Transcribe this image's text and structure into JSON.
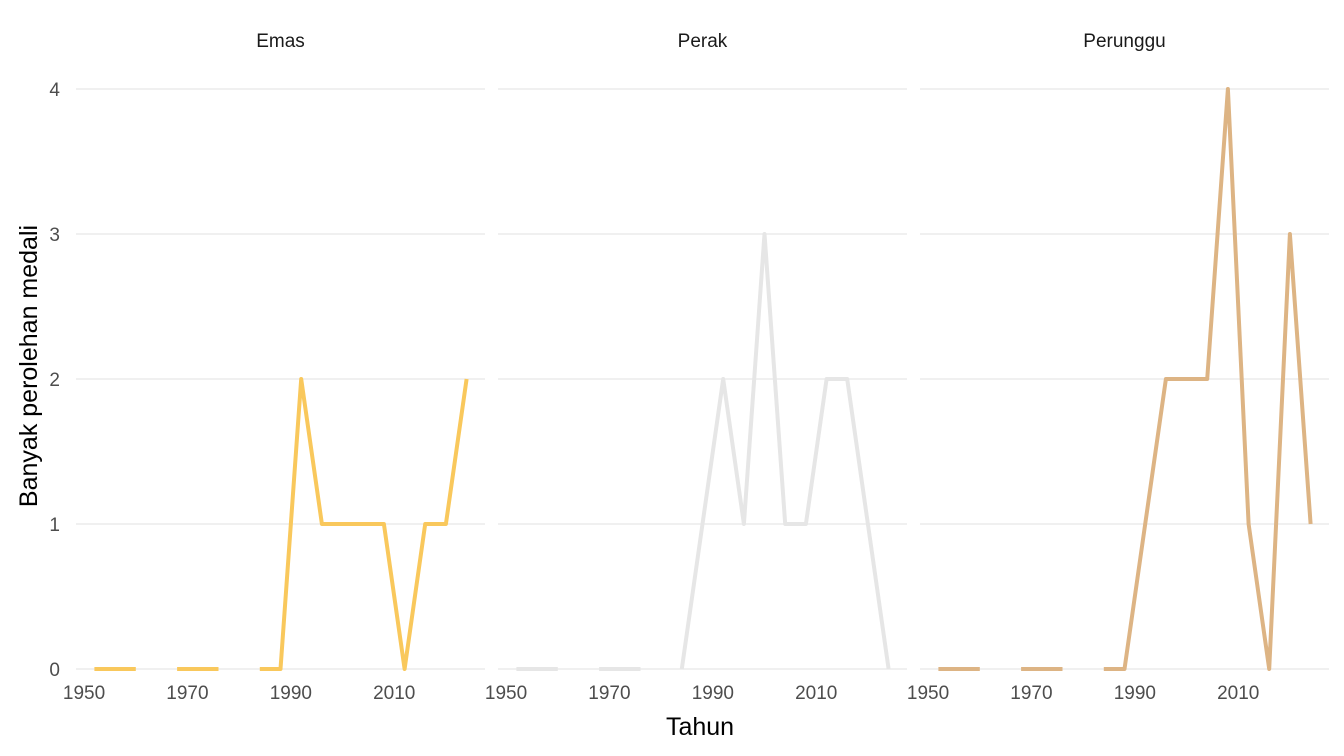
{
  "chart_data": {
    "type": "line",
    "facets": [
      "Emas",
      "Perak",
      "Perunggu"
    ],
    "xlabel": "Tahun",
    "ylabel": "Banyak perolehan medali",
    "xlim": [
      1952,
      2024
    ],
    "ylim": [
      0,
      4
    ],
    "x_ticks": [
      1950,
      1970,
      1990,
      2010
    ],
    "y_ticks": [
      0,
      1,
      2,
      3,
      4
    ],
    "grid": true,
    "legend": "none",
    "x": [
      1952,
      1956,
      1960,
      1964,
      1968,
      1972,
      1976,
      1980,
      1984,
      1988,
      1992,
      1996,
      2000,
      2004,
      2008,
      2012,
      2016,
      2020,
      2024
    ],
    "series": [
      {
        "facet": "Emas",
        "color": "#F9C85C",
        "values": [
          0,
          0,
          0,
          null,
          0,
          0,
          0,
          null,
          0,
          0,
          2,
          1,
          1,
          1,
          1,
          0,
          1,
          1,
          2
        ]
      },
      {
        "facet": "Perak",
        "color": "#E6E6E6",
        "values": [
          0,
          0,
          0,
          null,
          0,
          0,
          0,
          null,
          0,
          1,
          2,
          1,
          3,
          1,
          1,
          2,
          2,
          1,
          0
        ]
      },
      {
        "facet": "Perunggu",
        "color": "#DDB484",
        "values": [
          0,
          0,
          0,
          null,
          0,
          0,
          0,
          null,
          0,
          0,
          1,
          2,
          2,
          2,
          4,
          1,
          0,
          3,
          1
        ]
      }
    ]
  }
}
